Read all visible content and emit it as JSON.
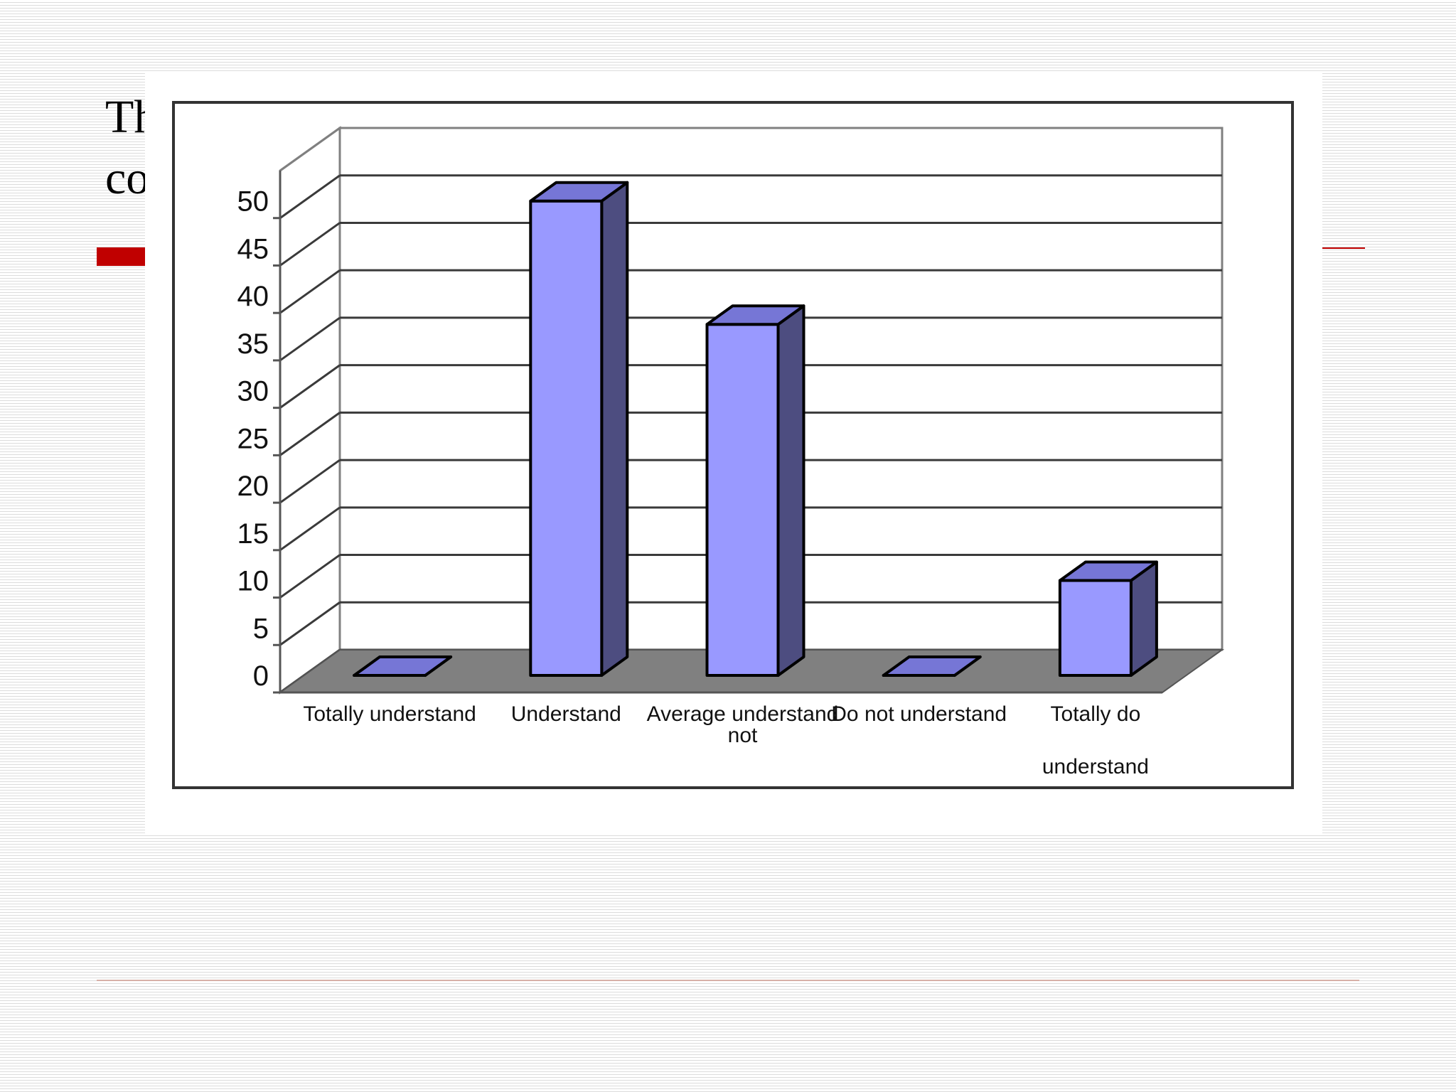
{
  "slide": {
    "title_line1": "Th",
    "title_line2": "co"
  },
  "colors": {
    "accent": "#c00000",
    "bar_front": "#9999ff",
    "bar_side": "#4d4d80",
    "bar_top": "#7676d6",
    "floor": "#808080"
  },
  "chart_data": {
    "type": "bar",
    "title": "",
    "xlabel": "",
    "ylabel": "",
    "categories": [
      "Totally understand",
      "Understand",
      "Average understand not",
      "Do not understand",
      "Totally do understand"
    ],
    "category_lines": [
      [
        "Totally understand"
      ],
      [
        "Understand"
      ],
      [
        "Average understand",
        "not"
      ],
      [
        "Do not understand"
      ],
      [
        "Totally do",
        "understand"
      ]
    ],
    "values": [
      0,
      50,
      37,
      0,
      10
    ],
    "ylim": [
      0,
      55
    ],
    "yticks": [
      0,
      5,
      10,
      15,
      20,
      25,
      30,
      35,
      40,
      45,
      50
    ],
    "grid": true,
    "legend": "none",
    "style": "3d-column"
  }
}
